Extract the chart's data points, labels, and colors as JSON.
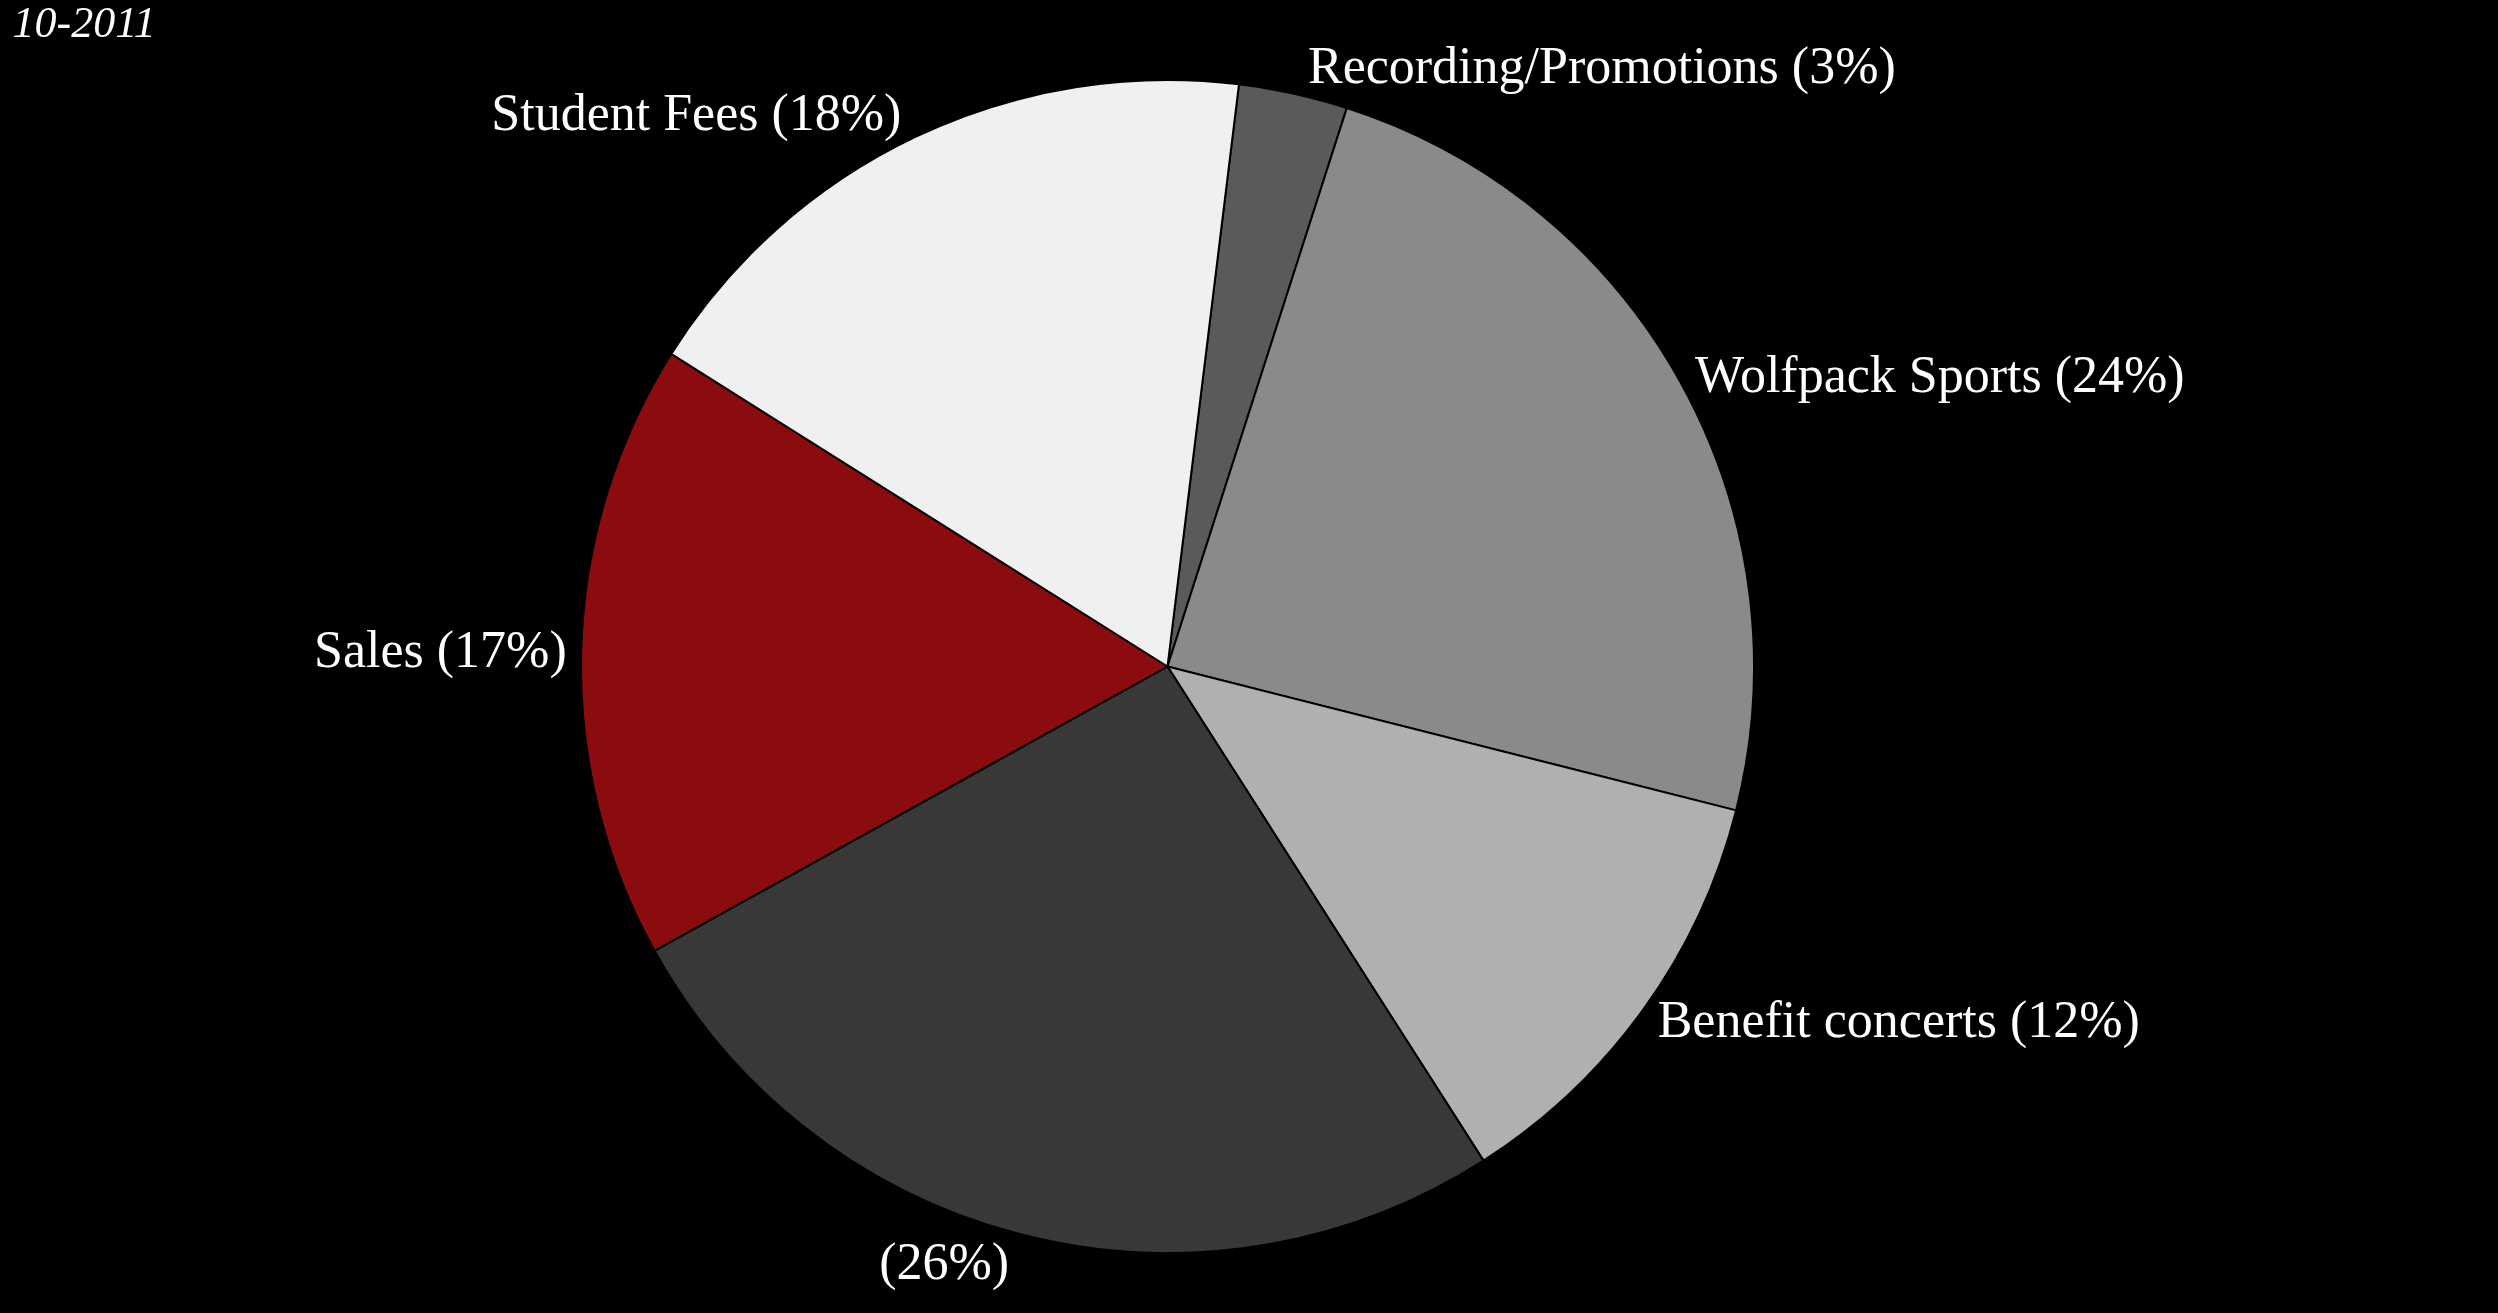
{
  "chart_data": {
    "type": "pie",
    "title": "10-2011",
    "categories": [
      "Recording/Promotions",
      "Wolfpack Sports",
      "Benefit concerts",
      null,
      "Sales",
      "Student Fees"
    ],
    "values": [
      3,
      24,
      12,
      26,
      17,
      18
    ],
    "value_labels": [
      "(3%)",
      "(24%)",
      "(12%)",
      "(26%)",
      "(17%)",
      "(18%)"
    ],
    "colors": [
      "#5a5a5a",
      "#8a8a8a",
      "#b0b0b0",
      "#383838",
      "#8b0c0e",
      "#f0f0f0"
    ],
    "legend": false
  }
}
